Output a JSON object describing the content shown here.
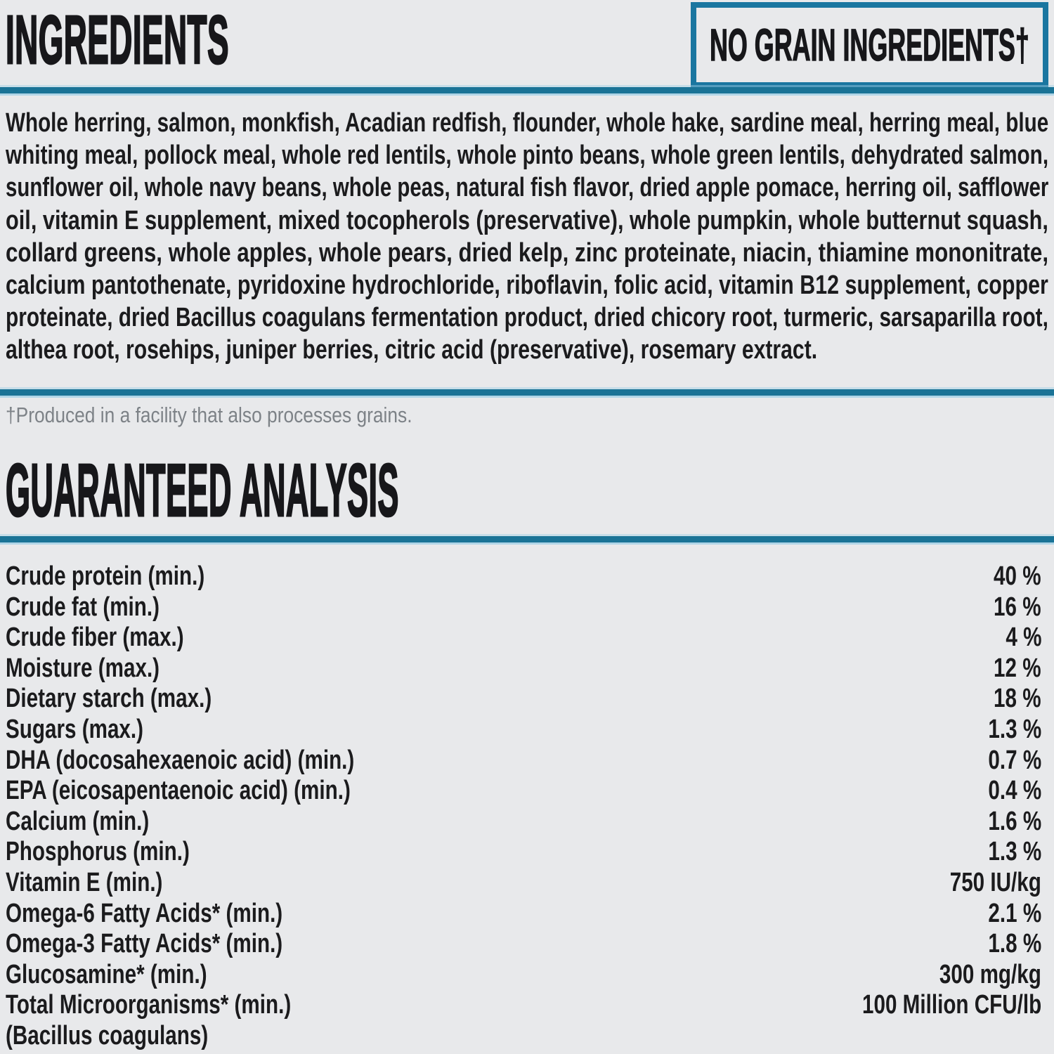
{
  "page": {
    "background_color": "#e8e9eb",
    "accent_blue": "#1a7396",
    "text_color": "#1b1b1d",
    "muted_color": "#7d8287"
  },
  "ingredients": {
    "title": "INGREDIENTS",
    "badge": "NO GRAIN INGREDIENTS†",
    "lines": [
      "Whole herring, salmon, monkfish, Acadian redfish, flounder, whole hake, sardine meal, herring meal, blue",
      "whiting meal, pollock meal, whole red lentils, whole pinto beans, whole green lentils, dehydrated salmon,",
      "sunflower oil, whole navy beans, whole peas, natural fish flavor, dried apple pomace, herring oil, safflower",
      "oil, vitamin E supplement, mixed tocopherols (preservative), whole pumpkin, whole butternut squash,",
      "collard greens, whole apples, whole pears, dried kelp, zinc proteinate, niacin, thiamine mononitrate,",
      "calcium pantothenate, pyridoxine hydrochloride, riboflavin, folic acid, vitamin B12 supplement, copper",
      "proteinate, dried Bacillus coagulans fermentation product, dried chicory root, turmeric, sarsaparilla root,",
      "althea root, rosehips, juniper berries, citric acid (preservative), rosemary extract."
    ],
    "footnote": "†Produced in a facility that also processes grains."
  },
  "guaranteed_analysis": {
    "title": "GUARANTEED ANALYSIS",
    "rows": [
      {
        "label": "Crude protein (min.)",
        "value": "40 %"
      },
      {
        "label": "Crude fat (min.)",
        "value": "16 %"
      },
      {
        "label": "Crude fiber (max.)",
        "value": "4 %"
      },
      {
        "label": "Moisture (max.)",
        "value": "12 %"
      },
      {
        "label": "Dietary starch (max.)",
        "value": "18 %"
      },
      {
        "label": "Sugars (max.)",
        "value": "1.3 %"
      },
      {
        "label": "DHA (docosahexaenoic acid) (min.)",
        "value": "0.7 %"
      },
      {
        "label": "EPA (eicosapentaenoic acid) (min.)",
        "value": "0.4 %"
      },
      {
        "label": "Calcium (min.)",
        "value": "1.6 %"
      },
      {
        "label": "Phosphorus (min.)",
        "value": "1.3 %"
      },
      {
        "label": "Vitamin E (min.)",
        "value": "750 IU/kg"
      },
      {
        "label": "Omega-6 Fatty Acids* (min.)",
        "value": "2.1 %"
      },
      {
        "label": "Omega-3 Fatty Acids* (min.)",
        "value": "1.8 %"
      },
      {
        "label": "Glucosamine* (min.)",
        "value": "300 mg/kg"
      },
      {
        "label": "Total Microorganisms* (min.)",
        "value": "100 Million CFU/lb"
      },
      {
        "label": "(Bacillus coagulans)",
        "value": ""
      }
    ]
  }
}
